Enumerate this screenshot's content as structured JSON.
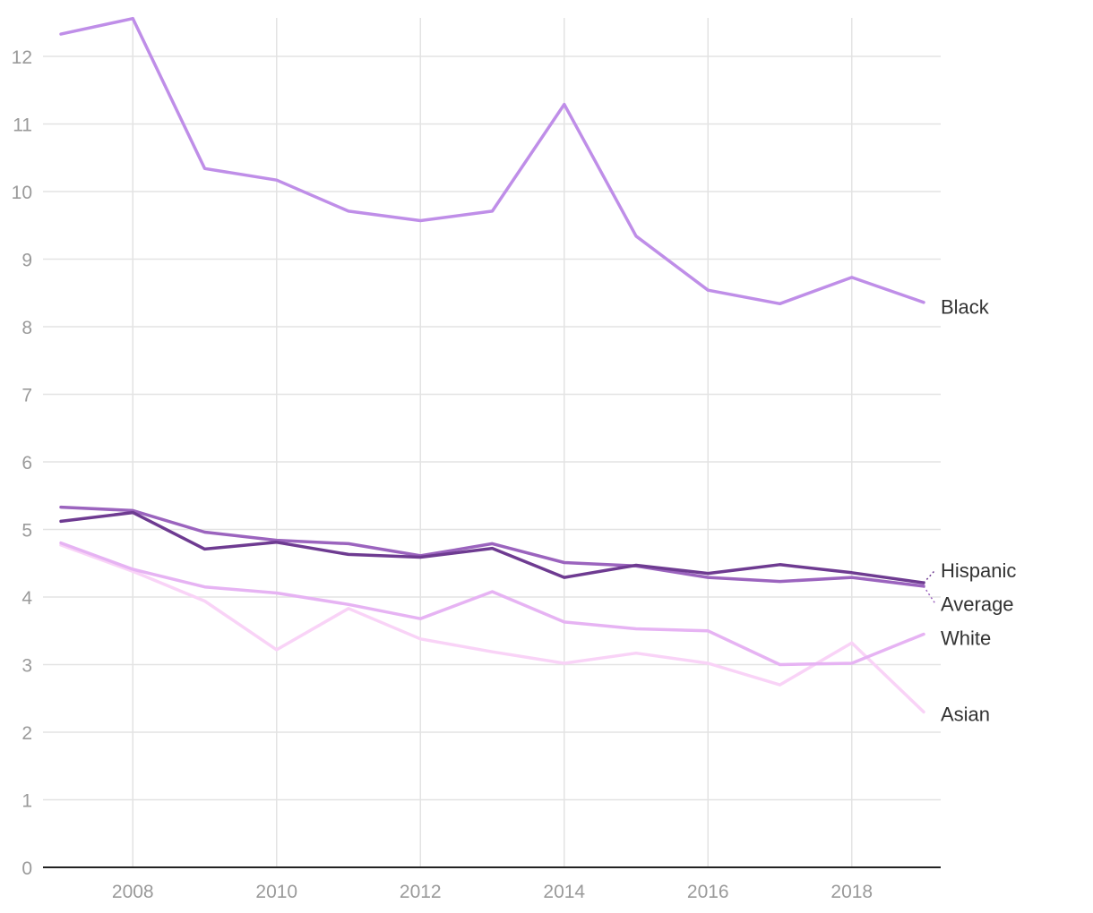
{
  "chart_data": {
    "type": "line",
    "x": [
      2007,
      2008,
      2009,
      2010,
      2011,
      2012,
      2013,
      2014,
      2015,
      2016,
      2017,
      2018,
      2019
    ],
    "xticks": [
      2008,
      2010,
      2012,
      2014,
      2016,
      2018
    ],
    "xtick_labels": [
      "2008",
      "2010",
      "2012",
      "2014",
      "2016",
      "2018"
    ],
    "yticks": [
      0,
      1,
      2,
      3,
      4,
      5,
      6,
      7,
      8,
      9,
      10,
      11,
      12
    ],
    "ytick_labels": [
      "0",
      "1",
      "2",
      "3",
      "4",
      "5",
      "6",
      "7",
      "8",
      "9",
      "10",
      "11",
      "12"
    ],
    "xlim": [
      2007,
      2019.25
    ],
    "ylim": [
      0,
      12.6
    ],
    "grid": true,
    "legend": "direct labels at right end of lines",
    "series": [
      {
        "name": "Asian",
        "color": "#f9d3f7",
        "values": [
          4.77,
          4.38,
          3.94,
          3.22,
          3.83,
          3.38,
          3.19,
          3.02,
          3.17,
          3.02,
          2.7,
          3.32,
          2.3
        ]
      },
      {
        "name": "White",
        "color": "#e6b3f3",
        "values": [
          4.8,
          4.41,
          4.15,
          4.06,
          3.89,
          3.68,
          4.08,
          3.63,
          3.53,
          3.5,
          3.0,
          3.02,
          3.45
        ]
      },
      {
        "name": "Average",
        "color": "#9b64be",
        "values": [
          5.33,
          5.28,
          4.96,
          4.84,
          4.79,
          4.61,
          4.79,
          4.51,
          4.46,
          4.29,
          4.23,
          4.29,
          4.16
        ]
      },
      {
        "name": "Hispanic",
        "color": "#6e3b91",
        "values": [
          5.12,
          5.25,
          4.71,
          4.81,
          4.63,
          4.59,
          4.72,
          4.29,
          4.47,
          4.35,
          4.48,
          4.36,
          4.21
        ]
      },
      {
        "name": "Black",
        "color": "#bf8ee8",
        "values": [
          12.33,
          12.56,
          10.34,
          10.17,
          9.71,
          9.57,
          9.71,
          11.29,
          9.34,
          8.54,
          8.34,
          8.73,
          8.36
        ]
      }
    ],
    "end_labels": {
      "Black": 8.3,
      "Hispanic": 4.4,
      "Average": 3.9,
      "White": 3.4,
      "Asian": 2.27
    }
  }
}
